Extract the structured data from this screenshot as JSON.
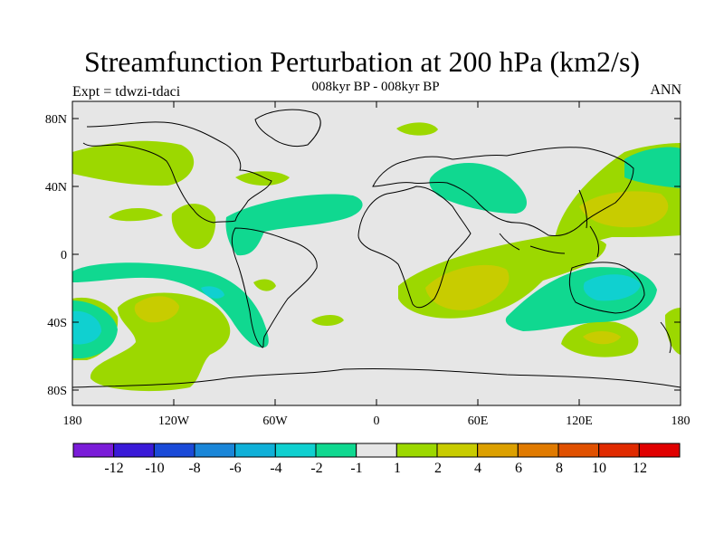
{
  "title": "Streamfunction Perturbation at 200 hPa (km2/s)",
  "subtitle": "008kyr BP - 008kyr BP",
  "left_label": "Expt = tdwzi-tdaci",
  "right_label": "ANN",
  "y_ticks": [
    "80N",
    "40N",
    "0",
    "40S",
    "80S"
  ],
  "x_ticks": [
    "180",
    "120W",
    "60W",
    "0",
    "60E",
    "120E",
    "180"
  ],
  "colorbar": {
    "colors": [
      "#7a1cd8",
      "#3a1ad8",
      "#1a4ad8",
      "#1a86d8",
      "#10b0d8",
      "#10d0d0",
      "#10d890",
      "#e6e6e6",
      "#9cd800",
      "#c8cc00",
      "#dca000",
      "#e07a00",
      "#e05000",
      "#e02a00",
      "#e00000"
    ],
    "labels": [
      "-12",
      "-10",
      "-8",
      "-6",
      "-4",
      "-2",
      "-1",
      "1",
      "2",
      "4",
      "6",
      "8",
      "10",
      "12"
    ]
  }
}
